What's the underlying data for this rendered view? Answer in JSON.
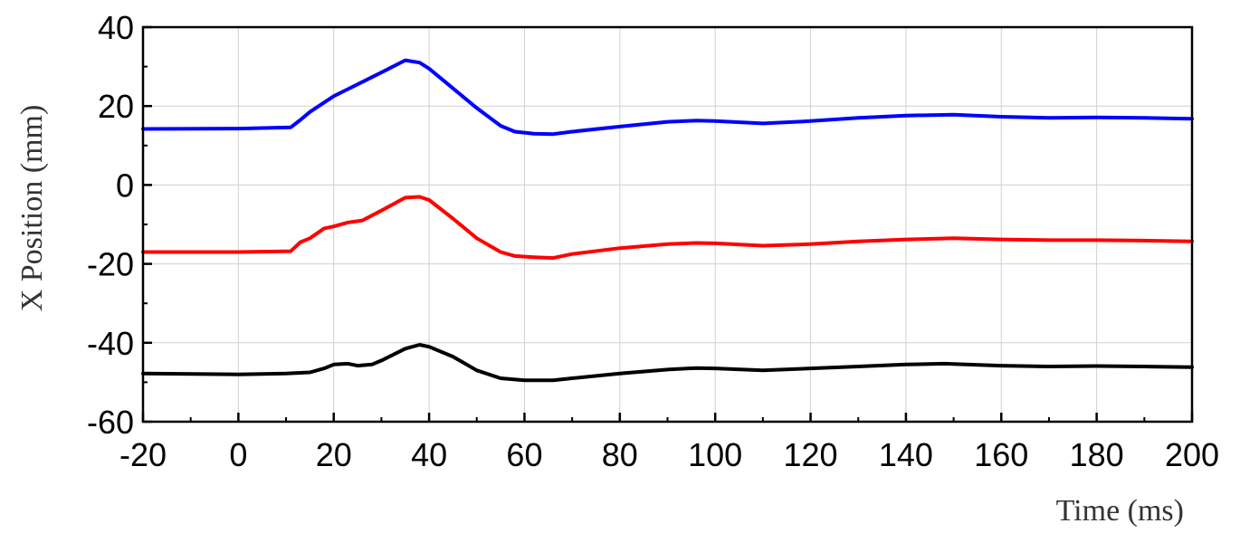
{
  "chart_data": {
    "type": "line",
    "title": "",
    "xlabel": "Time (ms)",
    "ylabel": "X Position (mm)",
    "xlim": [
      -20,
      200
    ],
    "ylim": [
      -60,
      40
    ],
    "xticks": [
      -20,
      0,
      20,
      40,
      60,
      80,
      100,
      120,
      140,
      160,
      180,
      200
    ],
    "yticks": [
      -60,
      -40,
      -20,
      0,
      20,
      40
    ],
    "grid": true,
    "legend": "none",
    "series": [
      {
        "color": "#0000ff",
        "x": [
          -20,
          0,
          11,
          13,
          15,
          20,
          25,
          30,
          35,
          38,
          40,
          45,
          50,
          55,
          58,
          62,
          66,
          70,
          80,
          90,
          96,
          100,
          110,
          120,
          130,
          140,
          150,
          160,
          170,
          180,
          190,
          200
        ],
        "y": [
          14.2,
          14.3,
          14.6,
          16.5,
          18.5,
          22.5,
          25.5,
          28.5,
          31.6,
          31.0,
          29.5,
          24.5,
          19.5,
          15.0,
          13.5,
          13.0,
          12.9,
          13.5,
          14.8,
          16.0,
          16.3,
          16.2,
          15.6,
          16.2,
          17.0,
          17.6,
          17.8,
          17.3,
          17.0,
          17.1,
          17.0,
          16.8
        ]
      },
      {
        "color": "#ff0000",
        "x": [
          -20,
          0,
          11,
          13,
          15,
          18,
          20,
          23,
          26,
          30,
          35,
          38,
          40,
          45,
          50,
          55,
          58,
          62,
          66,
          70,
          80,
          90,
          96,
          100,
          110,
          120,
          130,
          140,
          150,
          160,
          170,
          180,
          190,
          200
        ],
        "y": [
          -17.0,
          -17.0,
          -16.8,
          -14.5,
          -13.5,
          -11.0,
          -10.5,
          -9.5,
          -9.0,
          -6.5,
          -3.2,
          -3.0,
          -3.8,
          -8.5,
          -13.5,
          -17.0,
          -18.0,
          -18.3,
          -18.5,
          -17.5,
          -16.0,
          -15.0,
          -14.7,
          -14.8,
          -15.4,
          -15.0,
          -14.3,
          -13.8,
          -13.5,
          -13.8,
          -14.0,
          -14.0,
          -14.1,
          -14.3
        ]
      },
      {
        "color": "#000000",
        "x": [
          -20,
          0,
          10,
          15,
          18,
          20,
          23,
          25,
          28,
          30,
          35,
          38,
          40,
          45,
          50,
          55,
          60,
          66,
          70,
          80,
          90,
          96,
          100,
          110,
          120,
          130,
          140,
          148,
          160,
          170,
          180,
          190,
          200
        ],
        "y": [
          -47.8,
          -48.0,
          -47.8,
          -47.5,
          -46.5,
          -45.5,
          -45.3,
          -45.8,
          -45.5,
          -44.5,
          -41.5,
          -40.5,
          -41.0,
          -43.5,
          -47.0,
          -49.0,
          -49.5,
          -49.5,
          -49.0,
          -47.8,
          -46.8,
          -46.4,
          -46.5,
          -47.0,
          -46.5,
          -46.0,
          -45.5,
          -45.3,
          -45.8,
          -46.0,
          -45.9,
          -46.0,
          -46.2
        ]
      }
    ]
  }
}
